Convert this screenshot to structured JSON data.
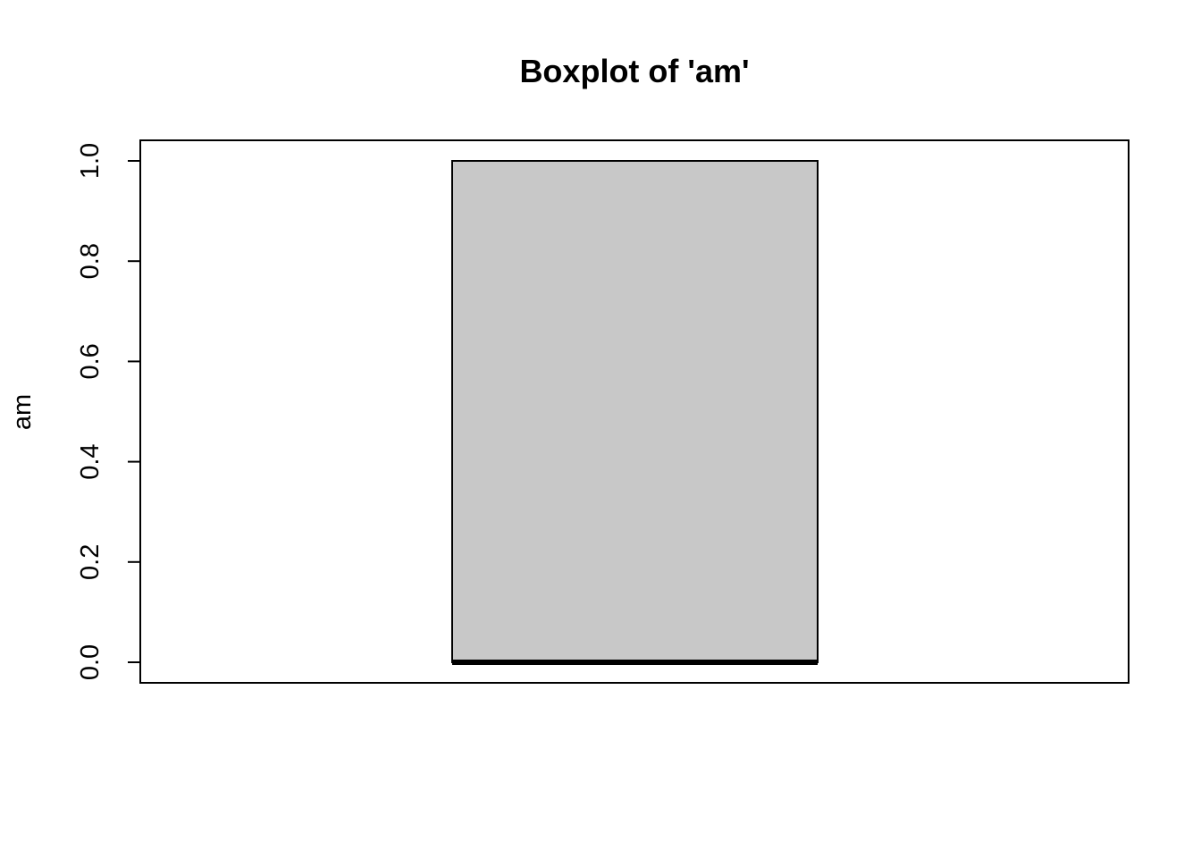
{
  "chart_data": {
    "type": "box",
    "title": "Boxplot of 'am'",
    "ylabel": "am",
    "xlabel": "",
    "ylim": [
      0,
      1
    ],
    "yticks": [
      "0.0",
      "0.2",
      "0.4",
      "0.6",
      "0.8",
      "1.0"
    ],
    "series": [
      {
        "min": 0,
        "q1": 0,
        "median": 0,
        "q3": 1,
        "max": 1
      }
    ],
    "box_color": "#c8c8c8",
    "line_color": "#000000",
    "grid": false
  }
}
